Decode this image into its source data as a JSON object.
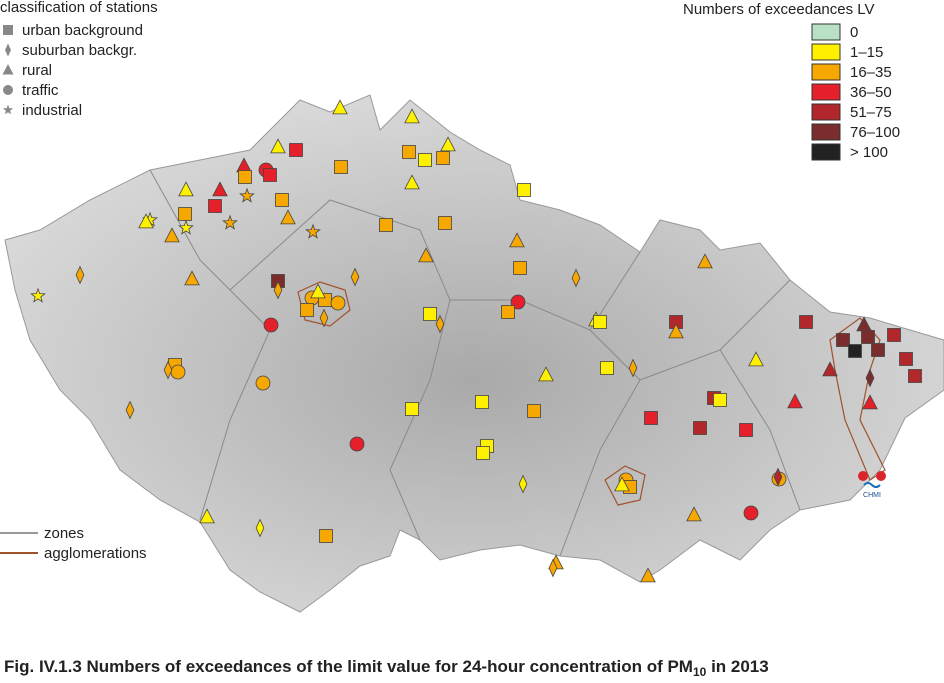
{
  "station_legend": {
    "title": "classification of stations",
    "items": [
      "urban background",
      "suburban backgr.",
      "rural",
      "traffic",
      "industrial"
    ]
  },
  "exceedance_legend": {
    "title": "Numbers of exceedances LV",
    "classes": [
      {
        "label": "0",
        "color": "#b9dfc4"
      },
      {
        "label": "1–15",
        "color": "#fff000"
      },
      {
        "label": "16–35",
        "color": "#f7a800"
      },
      {
        "label": "36–50",
        "color": "#e6202a"
      },
      {
        "label": "51–75",
        "color": "#b2272b"
      },
      {
        "label": "76–100",
        "color": "#7b2d2d"
      },
      {
        "label": "> 100",
        "color": "#222222"
      }
    ]
  },
  "line_legend": {
    "zones": "zones",
    "agglomerations": "agglomerations"
  },
  "logo": "CHMI",
  "caption": {
    "text": "Fig. IV.1.3  Numbers of exceedances of the limit value for 24-hour concentration of PM",
    "subscript": "10",
    "suffix": " in 2013"
  }
}
